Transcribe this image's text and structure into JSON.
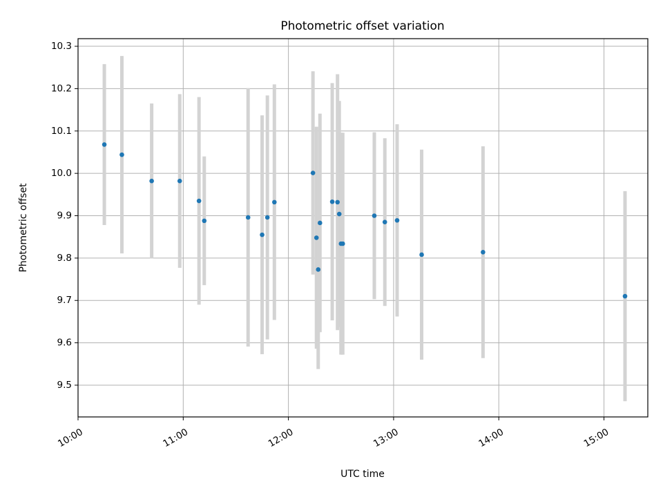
{
  "chart_data": {
    "type": "scatter",
    "title": "Photometric offset variation",
    "xlabel": "UTC time",
    "ylabel": "Photometric offset",
    "x_ticks": [
      "10:00",
      "11:00",
      "12:00",
      "13:00",
      "14:00",
      "15:00"
    ],
    "y_ticks": [
      "9.5",
      "9.6",
      "9.7",
      "9.8",
      "9.9",
      "10.0",
      "10.1",
      "10.2",
      "10.3"
    ],
    "xlim": [
      "10:00",
      "15:25"
    ],
    "ylim": [
      9.425,
      10.318
    ],
    "grid": true,
    "point_color": "#1f77b4",
    "errorbar_color": "#d3d3d3",
    "series": [
      {
        "points": [
          {
            "x": "10:15",
            "y": 10.068,
            "err": 0.19
          },
          {
            "x": "10:25",
            "y": 10.044,
            "err": 0.233
          },
          {
            "x": "10:42",
            "y": 9.982,
            "err": 0.183
          },
          {
            "x": "10:58",
            "y": 9.982,
            "err": 0.205
          },
          {
            "x": "11:09",
            "y": 9.935,
            "err": 0.245
          },
          {
            "x": "11:12",
            "y": 9.888,
            "err": 0.152
          },
          {
            "x": "11:37",
            "y": 9.896,
            "err": 0.305
          },
          {
            "x": "11:45",
            "y": 9.855,
            "err": 0.282
          },
          {
            "x": "11:48",
            "y": 9.896,
            "err": 0.288
          },
          {
            "x": "11:52",
            "y": 9.932,
            "err": 0.278
          },
          {
            "x": "12:14",
            "y": 10.001,
            "err": 0.24
          },
          {
            "x": "12:16",
            "y": 9.848,
            "err": 0.262
          },
          {
            "x": "12:17",
            "y": 9.773,
            "err": 0.235
          },
          {
            "x": "12:18",
            "y": 9.883,
            "err": 0.258
          },
          {
            "x": "12:25",
            "y": 9.933,
            "err": 0.28
          },
          {
            "x": "12:28",
            "y": 9.932,
            "err": 0.302
          },
          {
            "x": "12:29",
            "y": 9.904,
            "err": 0.267
          },
          {
            "x": "12:30",
            "y": 9.834,
            "err": 0.262
          },
          {
            "x": "12:31",
            "y": 9.834,
            "err": 0.262
          },
          {
            "x": "12:49",
            "y": 9.9,
            "err": 0.197
          },
          {
            "x": "12:55",
            "y": 9.885,
            "err": 0.198
          },
          {
            "x": "13:02",
            "y": 9.889,
            "err": 0.227
          },
          {
            "x": "13:16",
            "y": 9.808,
            "err": 0.248
          },
          {
            "x": "13:51",
            "y": 9.814,
            "err": 0.25
          },
          {
            "x": "15:12",
            "y": 9.71,
            "err": 0.248
          }
        ]
      }
    ]
  }
}
